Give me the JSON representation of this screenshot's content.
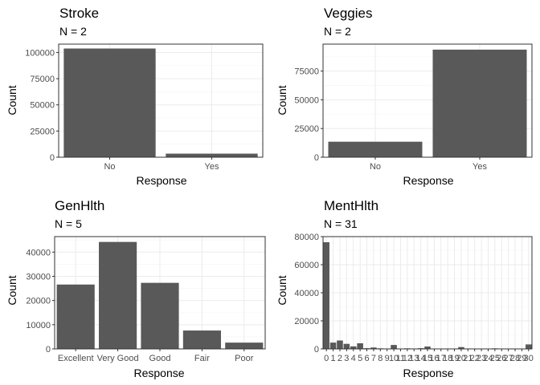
{
  "chart_data": [
    {
      "type": "bar",
      "title": "Stroke",
      "subtitle": "N = 2",
      "xlabel": "Response",
      "ylabel": "Count",
      "categories": [
        "No",
        "Yes"
      ],
      "values": [
        103800,
        3400
      ],
      "ylim": [
        0,
        108000
      ],
      "yticks": [
        0,
        25000,
        50000,
        75000,
        100000
      ],
      "grid": true
    },
    {
      "type": "bar",
      "title": "Veggies",
      "subtitle": "N = 2",
      "xlabel": "Response",
      "ylabel": "Count",
      "categories": [
        "No",
        "Yes"
      ],
      "values": [
        13500,
        93700
      ],
      "ylim": [
        0,
        98500
      ],
      "yticks": [
        0,
        25000,
        50000,
        75000
      ],
      "grid": true
    },
    {
      "type": "bar",
      "title": "GenHlth",
      "subtitle": "N = 5",
      "xlabel": "Response",
      "ylabel": "Count",
      "categories": [
        "Excellent",
        "Very Good",
        "Good",
        "Fair",
        "Poor"
      ],
      "values": [
        26600,
        44200,
        27300,
        7600,
        2600
      ],
      "ylim": [
        0,
        46400
      ],
      "yticks": [
        0,
        10000,
        20000,
        30000,
        40000
      ],
      "grid": true
    },
    {
      "type": "bar",
      "title": "MentHlth",
      "subtitle": "N = 31",
      "xlabel": "Response",
      "ylabel": "Count",
      "categories": [
        "0",
        "1",
        "2",
        "3",
        "4",
        "5",
        "6",
        "7",
        "8",
        "9",
        "10",
        "11",
        "12",
        "13",
        "14",
        "15",
        "16",
        "17",
        "18",
        "19",
        "20",
        "21",
        "22",
        "23",
        "24",
        "25",
        "26",
        "27",
        "28",
        "29",
        "30"
      ],
      "values": [
        76000,
        4500,
        6000,
        3600,
        1800,
        4000,
        500,
        1000,
        400,
        100,
        2800,
        50,
        400,
        50,
        500,
        1700,
        50,
        50,
        50,
        50,
        1300,
        300,
        50,
        50,
        50,
        400,
        50,
        100,
        200,
        200,
        3200
      ],
      "ylim": [
        0,
        80000
      ],
      "yticks": [
        0,
        20000,
        40000,
        60000,
        80000
      ],
      "grid": true
    }
  ],
  "colors": {
    "bar": "#595959",
    "grid_major": "#ebebeb",
    "grid_minor": "#f5f5f5",
    "panel_border": "#333333",
    "tick": "#333333"
  }
}
